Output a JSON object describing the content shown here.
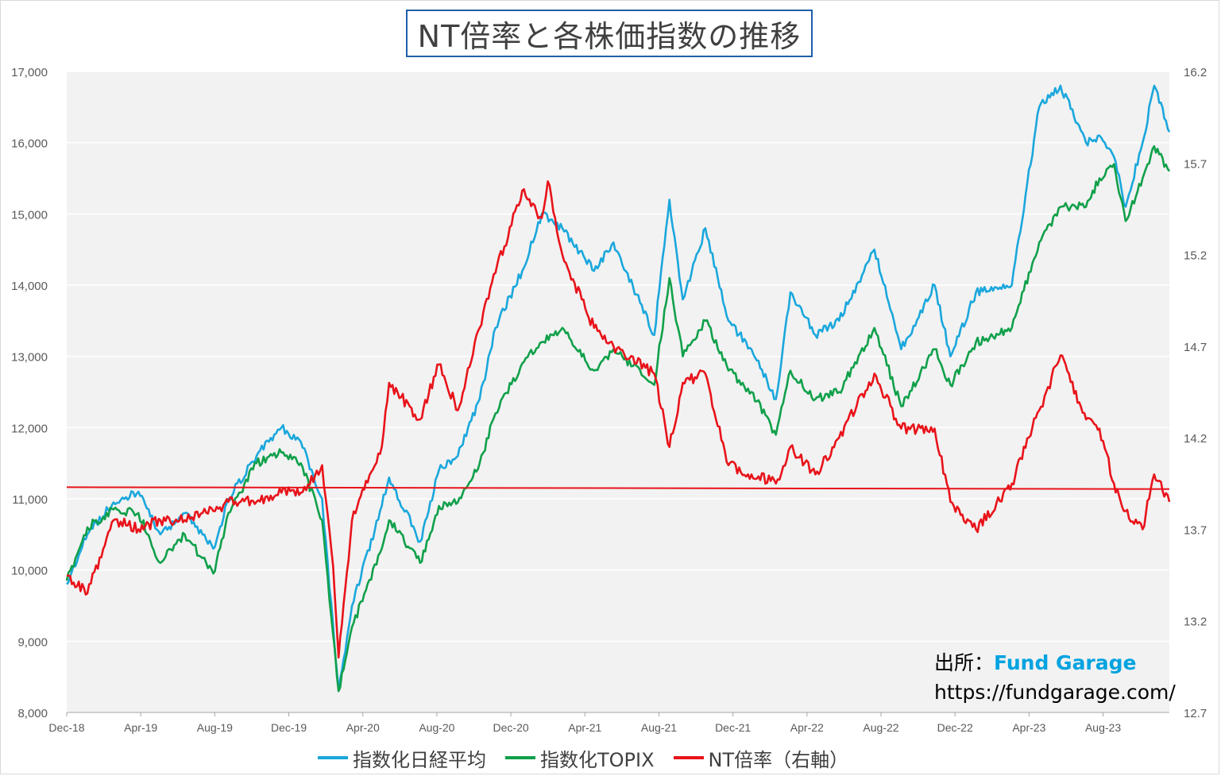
{
  "title": "NT倍率と各株価指数の推移",
  "source": {
    "label": "出所：",
    "brand": "Fund Garage",
    "url": "https://fundgarage.com/"
  },
  "colors": {
    "nikkei": "#1aa7dc",
    "topix": "#10a04a",
    "nt": "#e8131a",
    "plot_bg": "#f2f2f2",
    "grid": "#ffffff",
    "axis_text": "#595959"
  },
  "chart_data": {
    "type": "line",
    "title": "NT倍率と各株価指数の推移",
    "x_ticks": [
      "Dec-18",
      "Apr-19",
      "Aug-19",
      "Dec-19",
      "Apr-20",
      "Aug-20",
      "Dec-20",
      "Apr-21",
      "Aug-21",
      "Dec-21",
      "Apr-22",
      "Aug-22",
      "Dec-22",
      "Apr-23",
      "Aug-23"
    ],
    "x_range": [
      "2018-12-28",
      "2023-12-15"
    ],
    "y_left": {
      "ticks": [
        "8,000",
        "9,000",
        "10,000",
        "11,000",
        "12,000",
        "13,000",
        "14,000",
        "15,000",
        "16,000",
        "17,000"
      ],
      "ylim": [
        8000,
        17000
      ]
    },
    "y_right": {
      "ticks": [
        "12.7",
        "13.2",
        "13.7",
        "14.2",
        "14.7",
        "15.2",
        "15.7",
        "16.2"
      ],
      "ylim": [
        12.7,
        16.2
      ],
      "label": "右軸"
    },
    "grid": true,
    "legend_position": "bottom",
    "series": [
      {
        "name": "指数化日経平均",
        "axis": "left",
        "x": [
          "2018-12-28",
          "2019-01-31",
          "2019-03-15",
          "2019-04-25",
          "2019-05-31",
          "2019-07-10",
          "2019-08-26",
          "2019-09-20",
          "2019-11-05",
          "2019-12-16",
          "2020-01-17",
          "2020-02-21",
          "2020-03-19",
          "2020-04-10",
          "2020-05-29",
          "2020-06-10",
          "2020-07-31",
          "2020-08-31",
          "2020-10-01",
          "2020-11-06",
          "2020-12-02",
          "2021-01-15",
          "2021-02-16",
          "2021-03-22",
          "2021-05-13",
          "2021-06-14",
          "2021-08-20",
          "2021-09-14",
          "2021-10-06",
          "2021-11-12",
          "2021-12-20",
          "2022-01-27",
          "2022-03-08",
          "2022-04-01",
          "2022-05-12",
          "2022-06-20",
          "2022-08-17",
          "2022-09-30",
          "2022-11-24",
          "2022-12-20",
          "2023-01-31",
          "2023-03-31",
          "2023-05-15",
          "2023-06-19",
          "2023-07-31",
          "2023-08-22",
          "2023-09-15",
          "2023-10-04",
          "2023-11-01",
          "2023-11-20",
          "2023-12-15"
        ],
        "values": [
          9800,
          10500,
          10950,
          11100,
          10500,
          10800,
          10300,
          11000,
          11600,
          12000,
          11800,
          11000,
          8300,
          9500,
          10900,
          11300,
          10400,
          11400,
          11600,
          12400,
          13400,
          14200,
          15000,
          14800,
          14200,
          14600,
          13300,
          15200,
          13800,
          14800,
          13500,
          13100,
          12400,
          13900,
          13300,
          13500,
          14500,
          13100,
          14000,
          13000,
          13900,
          14000,
          16500,
          16800,
          16000,
          16100,
          15800,
          15100,
          16000,
          16800,
          16150
        ]
      },
      {
        "name": "指数化TOPIX",
        "axis": "left",
        "x": [
          "2018-12-28",
          "2019-01-31",
          "2019-03-15",
          "2019-04-25",
          "2019-05-31",
          "2019-07-10",
          "2019-08-26",
          "2019-09-20",
          "2019-11-05",
          "2019-12-16",
          "2020-01-17",
          "2020-02-21",
          "2020-03-19",
          "2020-04-10",
          "2020-05-29",
          "2020-06-10",
          "2020-07-31",
          "2020-08-31",
          "2020-10-01",
          "2020-11-06",
          "2020-12-02",
          "2021-01-15",
          "2021-02-16",
          "2021-03-22",
          "2021-05-13",
          "2021-06-14",
          "2021-08-20",
          "2021-09-14",
          "2021-10-06",
          "2021-11-12",
          "2021-12-20",
          "2022-01-27",
          "2022-03-08",
          "2022-04-01",
          "2022-05-12",
          "2022-06-20",
          "2022-08-17",
          "2022-09-30",
          "2022-11-24",
          "2022-12-20",
          "2023-01-31",
          "2023-03-31",
          "2023-05-15",
          "2023-06-19",
          "2023-07-31",
          "2023-08-22",
          "2023-09-15",
          "2023-10-04",
          "2023-11-01",
          "2023-11-20",
          "2023-12-15"
        ],
        "values": [
          9850,
          10600,
          10850,
          10800,
          10100,
          10500,
          9950,
          10800,
          11500,
          11650,
          11500,
          10700,
          8300,
          9200,
          10300,
          10700,
          10100,
          10900,
          10950,
          11500,
          12200,
          12900,
          13200,
          13400,
          12800,
          13100,
          12600,
          14100,
          13000,
          13500,
          12800,
          12500,
          11900,
          12800,
          12400,
          12500,
          13400,
          12300,
          13100,
          12600,
          13200,
          13400,
          14600,
          15100,
          15100,
          15500,
          15700,
          14900,
          15500,
          15950,
          15600
        ]
      },
      {
        "name": "NT倍率（右軸）",
        "axis": "right",
        "x": [
          "2018-12-28",
          "2019-01-31",
          "2019-03-15",
          "2019-04-25",
          "2019-05-31",
          "2019-07-10",
          "2019-08-26",
          "2019-09-20",
          "2019-11-05",
          "2019-12-16",
          "2020-01-17",
          "2020-02-21",
          "2020-03-10",
          "2020-03-19",
          "2020-04-10",
          "2020-05-29",
          "2020-06-10",
          "2020-07-31",
          "2020-08-31",
          "2020-10-01",
          "2020-11-06",
          "2020-12-02",
          "2021-01-15",
          "2021-02-16",
          "2021-02-26",
          "2021-03-22",
          "2021-05-13",
          "2021-06-14",
          "2021-08-20",
          "2021-09-14",
          "2021-10-06",
          "2021-11-12",
          "2021-12-20",
          "2022-01-27",
          "2022-03-08",
          "2022-04-01",
          "2022-05-12",
          "2022-06-20",
          "2022-08-17",
          "2022-09-30",
          "2022-11-24",
          "2022-12-20",
          "2023-01-31",
          "2023-03-31",
          "2023-05-15",
          "2023-06-19",
          "2023-07-31",
          "2023-08-22",
          "2023-09-15",
          "2023-10-04",
          "2023-11-01",
          "2023-11-20",
          "2023-12-15"
        ],
        "values": [
          13.45,
          13.35,
          13.75,
          13.7,
          13.75,
          13.75,
          13.8,
          13.85,
          13.85,
          13.9,
          13.9,
          14.05,
          13.5,
          13.0,
          13.75,
          14.15,
          14.5,
          14.3,
          14.6,
          14.35,
          14.8,
          15.1,
          15.55,
          15.4,
          15.6,
          15.2,
          14.8,
          14.7,
          14.55,
          14.15,
          14.5,
          14.55,
          14.05,
          14.0,
          13.95,
          14.15,
          14.0,
          14.2,
          14.55,
          14.25,
          14.25,
          13.85,
          13.7,
          13.95,
          14.35,
          14.65,
          14.3,
          14.25,
          13.95,
          13.8,
          13.7,
          14.0,
          13.85
        ]
      },
      {
        "name": "",
        "axis": "right",
        "x": [
          "2018-12-28",
          "2023-12-15"
        ],
        "values": [
          13.93,
          13.92
        ]
      }
    ]
  }
}
